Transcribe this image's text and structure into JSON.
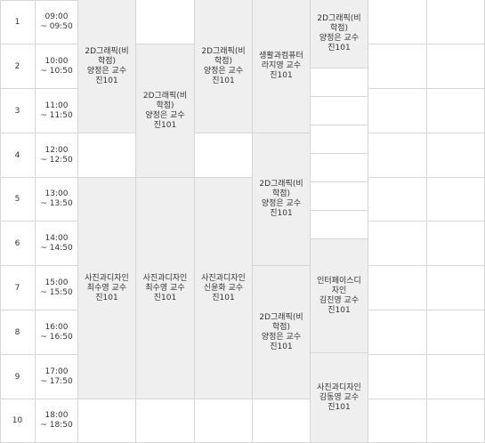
{
  "periods": [
    {
      "number": "1",
      "start": "09:00",
      "end": "~ 09:50"
    },
    {
      "number": "2",
      "start": "10:00",
      "end": "~ 10:50"
    },
    {
      "number": "3",
      "start": "11:00",
      "end": "~ 11:50"
    },
    {
      "number": "4",
      "start": "12:00",
      "end": "~ 12:50"
    },
    {
      "number": "5",
      "start": "13:00",
      "end": "~ 13:50"
    },
    {
      "number": "6",
      "start": "14:00",
      "end": "~ 14:50"
    },
    {
      "number": "7",
      "start": "15:00",
      "end": "~ 15:50"
    },
    {
      "number": "8",
      "start": "16:00",
      "end": "~ 16:50"
    },
    {
      "number": "9",
      "start": "17:00",
      "end": "~ 17:50"
    },
    {
      "number": "10",
      "start": "18:00",
      "end": "~ 18:50"
    }
  ],
  "courses": {
    "c1": "2D그래픽(비\n학점)\n양정은 교수\n진101",
    "c2": "사진과디자인\n최수영 교수\n진101",
    "c3": "2D그래픽(비\n학점)\n양정은 교수\n진101",
    "c4": "사진과디자인\n최수영 교수\n진101",
    "c5": "2D그래픽(비\n학점)\n양정은 교수\n진101",
    "c6": "사진과디자인\n신윤화 교수\n진101",
    "c7": "생활과컴퓨터\n라지영 교수\n진101",
    "c8": "2D그래픽(비\n학점)\n양정은 교수\n진101",
    "c9": "2D그래픽(비\n학점)\n양정은 교수\n진101",
    "c10": "2D그래픽(비\n학점)\n양정은 교수\n진101",
    "c11": "인터페이스디\n자인\n김진영 교수\n진101",
    "c12": "사진과디자인\n김동영 교수\n진101"
  }
}
